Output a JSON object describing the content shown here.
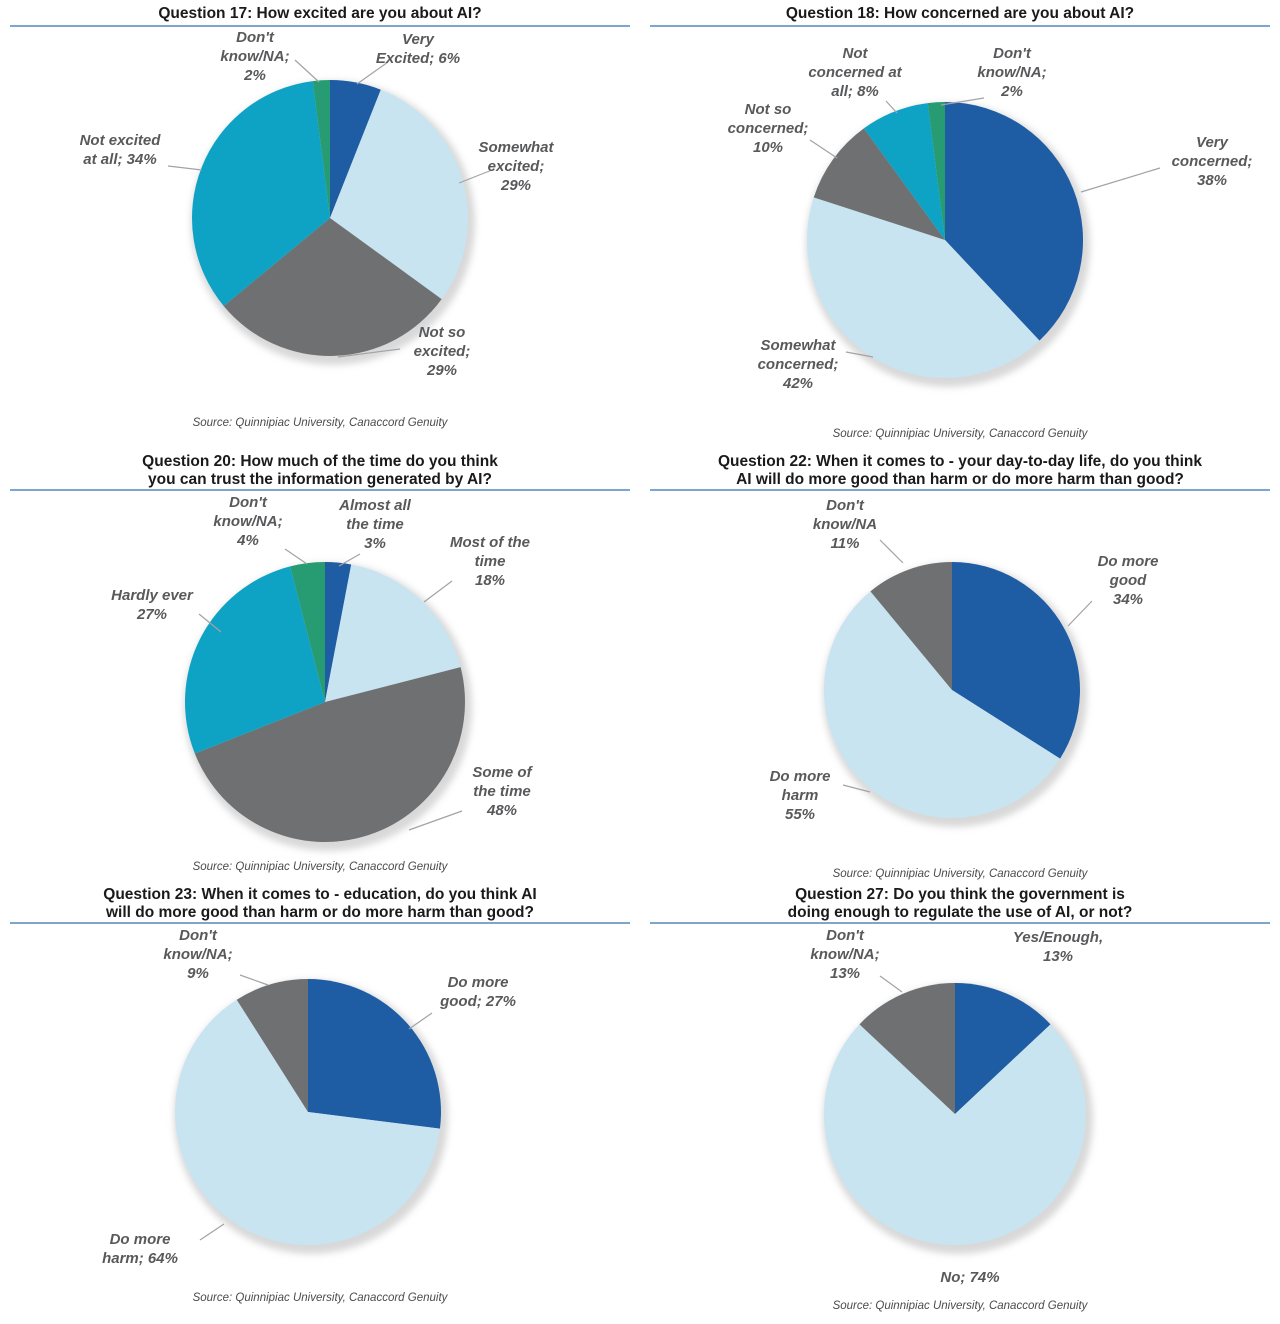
{
  "source_note": "Source: Quinnipiac University, Canaccord Genuity",
  "palette": {
    "dark_blue": "#1E5CA4",
    "light_blue": "#C8E4F0",
    "gray": "#6F7072",
    "teal": "#0EA2C4",
    "green": "#279B72",
    "title_color": "#1A1A1A",
    "label_color": "#58595B",
    "rule_color": "#7FA6C9",
    "leader_color": "#A3A3A3"
  },
  "chart_data": [
    {
      "id": "q17",
      "type": "pie",
      "title": "Question 17: How excited are you about AI?",
      "title_lines": [
        "Question 17: How excited are you about AI?"
      ],
      "legend_position": "outside-labels",
      "start_angle_deg": 0,
      "clockwise": true,
      "slices": [
        {
          "name": "Very Excited",
          "value": 6,
          "color": "dark_blue",
          "label_lines": [
            "Very",
            "Excited; 6%"
          ]
        },
        {
          "name": "Somewhat excited",
          "value": 29,
          "color": "light_blue",
          "label_lines": [
            "Somewhat",
            "excited;",
            "29%"
          ]
        },
        {
          "name": "Not so excited",
          "value": 29,
          "color": "gray",
          "label_lines": [
            "Not so",
            "excited;",
            "29%"
          ]
        },
        {
          "name": "Not excited at all",
          "value": 34,
          "color": "teal",
          "label_lines": [
            "Not excited",
            "at all; 34%"
          ]
        },
        {
          "name": "Don't know/NA",
          "value": 2,
          "color": "green",
          "label_lines": [
            "Don't",
            "know/NA;",
            "2%"
          ]
        }
      ]
    },
    {
      "id": "q18",
      "type": "pie",
      "title": "Question 18: How concerned are you about AI?",
      "title_lines": [
        "Question 18: How concerned are you about AI?"
      ],
      "legend_position": "outside-labels",
      "start_angle_deg": 0,
      "clockwise": true,
      "slices": [
        {
          "name": "Very concerned",
          "value": 38,
          "color": "dark_blue",
          "label_lines": [
            "Very",
            "concerned;",
            "38%"
          ]
        },
        {
          "name": "Somewhat concerned",
          "value": 42,
          "color": "light_blue",
          "label_lines": [
            "Somewhat",
            "concerned;",
            "42%"
          ]
        },
        {
          "name": "Not so concerned",
          "value": 10,
          "color": "gray",
          "label_lines": [
            "Not so",
            "concerned;",
            "10%"
          ]
        },
        {
          "name": "Not concerned at all",
          "value": 8,
          "color": "teal",
          "label_lines": [
            "Not",
            "concerned at",
            "all; 8%"
          ]
        },
        {
          "name": "Don't know/NA",
          "value": 2,
          "color": "green",
          "label_lines": [
            "Don't",
            "know/NA;",
            "2%"
          ]
        }
      ]
    },
    {
      "id": "q20",
      "type": "pie",
      "title": "Question 20: How much of the time do you think you can trust the information generated by AI?",
      "title_lines": [
        "Question 20: How much of the time do you think",
        "you can trust the information generated by AI?"
      ],
      "legend_position": "outside-labels",
      "start_angle_deg": 0,
      "clockwise": true,
      "slices": [
        {
          "name": "Almost all the time",
          "value": 3,
          "color": "dark_blue",
          "label_lines": [
            "Almost all",
            "the time",
            "3%"
          ]
        },
        {
          "name": "Most of the time",
          "value": 18,
          "color": "light_blue",
          "label_lines": [
            "Most of the",
            "time",
            "18%"
          ]
        },
        {
          "name": "Some of the time",
          "value": 48,
          "color": "gray",
          "label_lines": [
            "Some of",
            "the time",
            "48%"
          ]
        },
        {
          "name": "Hardly ever",
          "value": 27,
          "color": "teal",
          "label_lines": [
            "Hardly ever",
            "27%"
          ]
        },
        {
          "name": "Don't know/NA",
          "value": 4,
          "color": "green",
          "label_lines": [
            "Don't",
            "know/NA;",
            "4%"
          ]
        }
      ]
    },
    {
      "id": "q22",
      "type": "pie",
      "title": "Question 22: When it comes to - your day-to-day life, do you think AI will do more good than harm or do more harm than good?",
      "title_lines": [
        "Question 22: When it comes to - your day-to-day life, do you think",
        "AI will do more good than harm or do more harm than good?"
      ],
      "legend_position": "outside-labels",
      "start_angle_deg": 0,
      "clockwise": true,
      "slices": [
        {
          "name": "Do more good",
          "value": 34,
          "color": "dark_blue",
          "label_lines": [
            "Do more",
            "good",
            "34%"
          ]
        },
        {
          "name": "Do more harm",
          "value": 55,
          "color": "light_blue",
          "label_lines": [
            "Do more",
            "harm",
            "55%"
          ]
        },
        {
          "name": "Don't know/NA",
          "value": 11,
          "color": "gray",
          "label_lines": [
            "Don't",
            "know/NA",
            "11%"
          ]
        }
      ]
    },
    {
      "id": "q23",
      "type": "pie",
      "title": "Question 23: When it comes to - education, do you think AI will do more good than harm or do more harm than good?",
      "title_lines": [
        "Question 23: When it comes to - education, do you think AI",
        "will do more good than harm or do more harm than good?"
      ],
      "legend_position": "outside-labels",
      "start_angle_deg": 0,
      "clockwise": true,
      "slices": [
        {
          "name": "Do more good",
          "value": 27,
          "color": "dark_blue",
          "label_lines": [
            "Do more",
            "good; 27%"
          ]
        },
        {
          "name": "Do more harm",
          "value": 64,
          "color": "light_blue",
          "label_lines": [
            "Do more",
            "harm; 64%"
          ]
        },
        {
          "name": "Don't know/NA",
          "value": 9,
          "color": "gray",
          "label_lines": [
            "Don't",
            "know/NA;",
            "9%"
          ]
        }
      ]
    },
    {
      "id": "q27",
      "type": "pie",
      "title": "Question 27: Do you think the government is doing enough to regulate the use of AI, or not?",
      "title_lines": [
        "Question 27: Do you think the government is",
        "doing enough to regulate the use of AI, or not?"
      ],
      "legend_position": "outside-labels",
      "start_angle_deg": 0,
      "clockwise": true,
      "slices": [
        {
          "name": "Yes/Enough",
          "value": 13,
          "color": "dark_blue",
          "label_lines": [
            "Yes/Enough,",
            "13%"
          ]
        },
        {
          "name": "No",
          "value": 74,
          "color": "light_blue",
          "label_lines": [
            "No; 74%"
          ]
        },
        {
          "name": "Don't know/NA",
          "value": 13,
          "color": "gray",
          "label_lines": [
            "Don't",
            "know/NA;",
            "13%"
          ]
        }
      ]
    }
  ]
}
